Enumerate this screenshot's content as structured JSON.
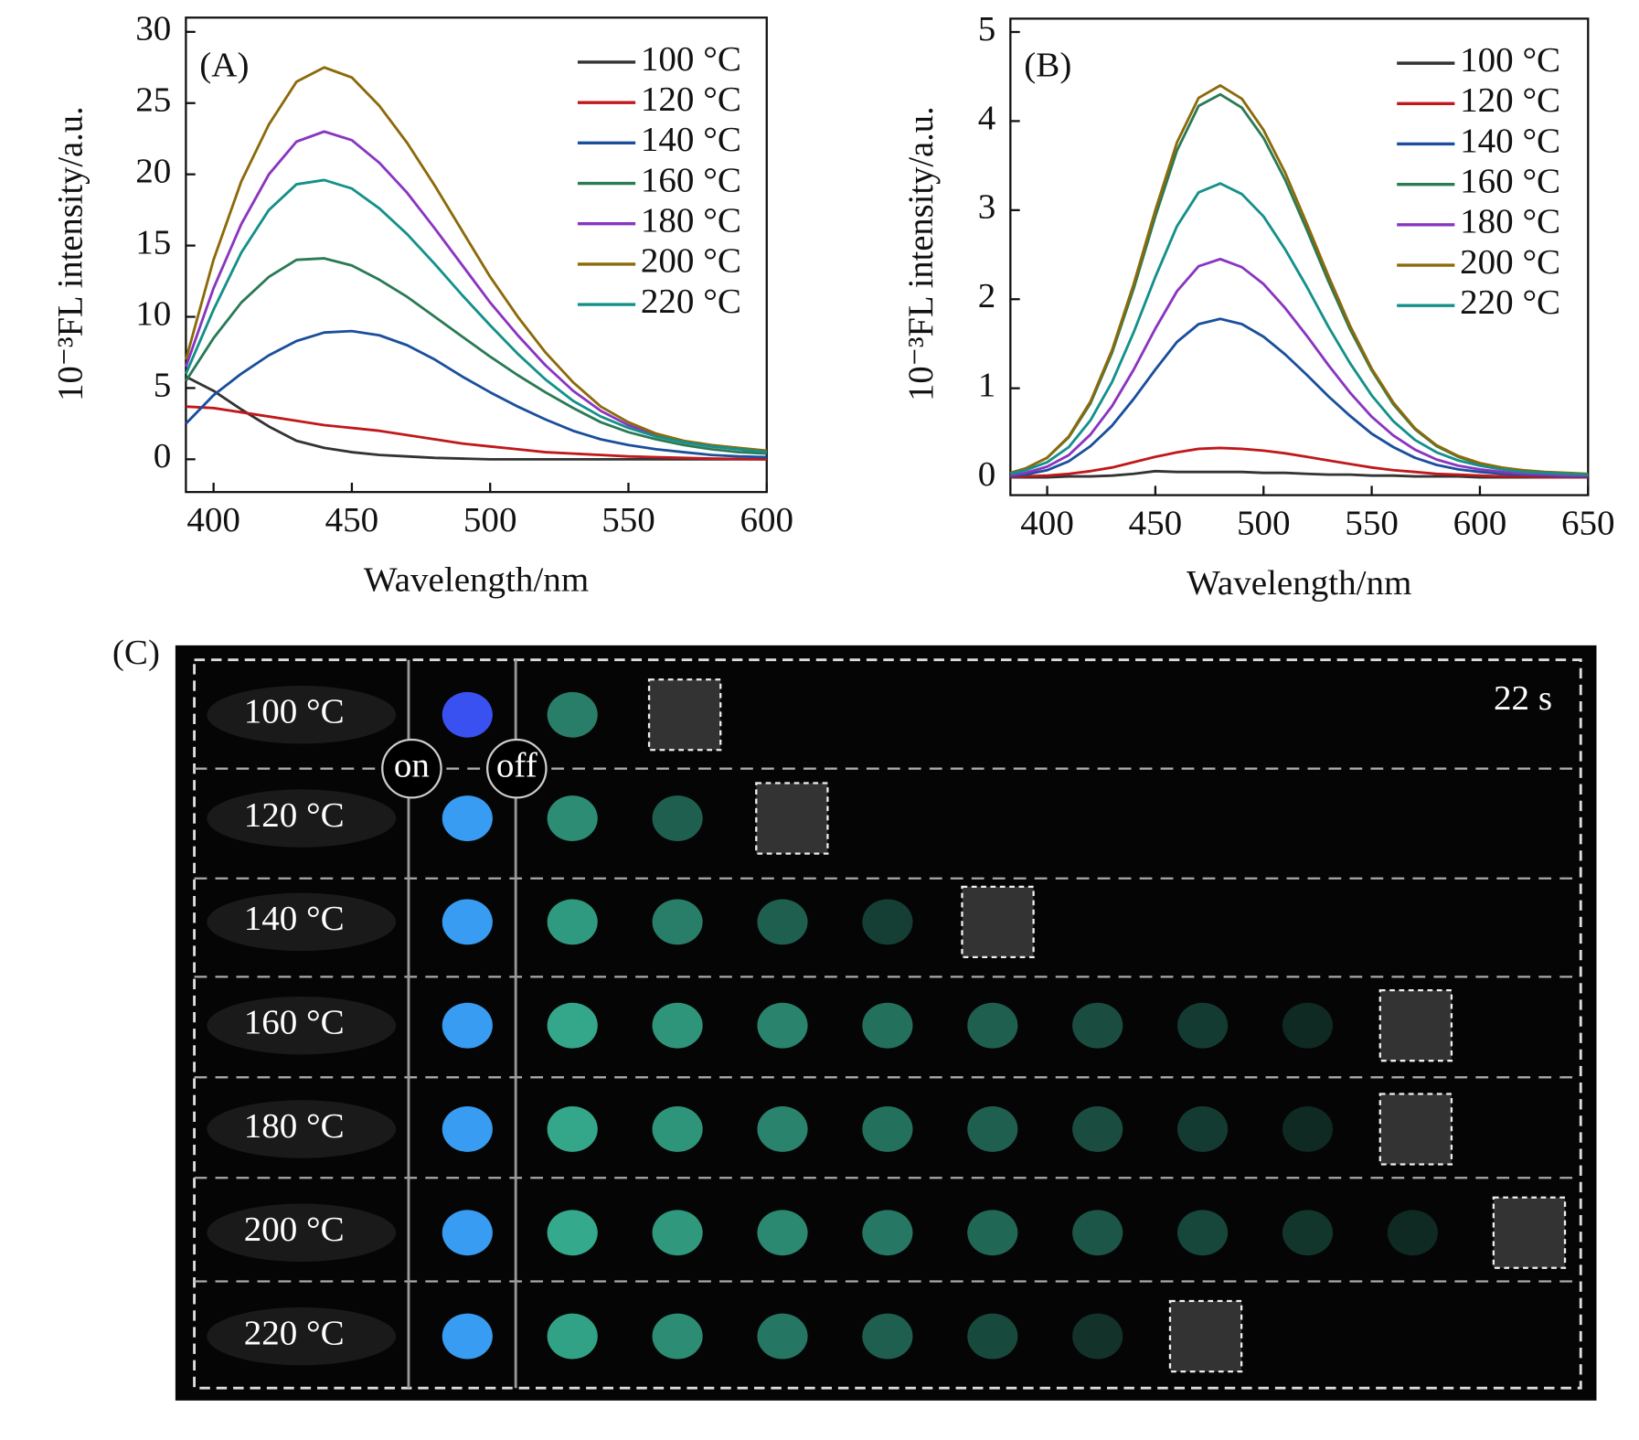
{
  "chart_data": [
    {
      "type": "line",
      "panel": "(A)",
      "x_label": "Wavelength/nm",
      "y_label": "10⁻³FL intensity/a.u.",
      "xlim": [
        390,
        600
      ],
      "ylim": [
        -2.3,
        31
      ],
      "xticks": [
        400,
        450,
        500,
        550,
        600
      ],
      "yticks": [
        0,
        5,
        10,
        15,
        20,
        25,
        30
      ],
      "legend": "upper right",
      "x": [
        390,
        400,
        410,
        420,
        430,
        440,
        450,
        460,
        470,
        480,
        490,
        500,
        510,
        520,
        530,
        540,
        550,
        560,
        570,
        580,
        590,
        600
      ],
      "series": [
        {
          "name": "100 °C",
          "color": "#333333",
          "values": [
            5.8,
            4.8,
            3.5,
            2.3,
            1.3,
            0.8,
            0.5,
            0.3,
            0.2,
            0.1,
            0.05,
            0,
            0,
            0,
            0,
            0,
            0,
            0,
            0,
            0,
            0,
            0
          ]
        },
        {
          "name": "120 °C",
          "color": "#c0181b",
          "values": [
            3.7,
            3.6,
            3.3,
            3.0,
            2.7,
            2.4,
            2.2,
            2.0,
            1.7,
            1.4,
            1.1,
            0.9,
            0.7,
            0.5,
            0.4,
            0.3,
            0.2,
            0.15,
            0.1,
            0.05,
            0.02,
            0
          ]
        },
        {
          "name": "140 °C",
          "color": "#1a4f9c",
          "values": [
            2.5,
            4.5,
            6.0,
            7.3,
            8.3,
            8.9,
            9.0,
            8.7,
            8.0,
            7.0,
            5.8,
            4.7,
            3.7,
            2.8,
            2.0,
            1.4,
            1.0,
            0.7,
            0.5,
            0.3,
            0.2,
            0.15
          ]
        },
        {
          "name": "160 °C",
          "color": "#2a7a55",
          "values": [
            5.5,
            8.5,
            11,
            12.8,
            14,
            14.1,
            13.6,
            12.6,
            11.4,
            10,
            8.6,
            7.2,
            5.9,
            4.7,
            3.6,
            2.6,
            1.9,
            1.4,
            1.0,
            0.7,
            0.5,
            0.4
          ]
        },
        {
          "name": "180 °C",
          "color": "#8a35c0",
          "values": [
            6.5,
            12,
            16.5,
            20,
            22.3,
            23.0,
            22.4,
            20.8,
            18.7,
            16.2,
            13.6,
            11,
            8.7,
            6.6,
            4.8,
            3.4,
            2.4,
            1.7,
            1.2,
            0.9,
            0.7,
            0.5
          ]
        },
        {
          "name": "200 °C",
          "color": "#8c6a0a",
          "values": [
            7,
            14,
            19.5,
            23.5,
            26.5,
            27.5,
            26.8,
            24.8,
            22.2,
            19.2,
            16,
            12.8,
            10,
            7.5,
            5.4,
            3.7,
            2.6,
            1.8,
            1.3,
            1.0,
            0.8,
            0.6
          ]
        },
        {
          "name": "220 °C",
          "color": "#14908a",
          "values": [
            6,
            10.5,
            14.5,
            17.5,
            19.3,
            19.6,
            19,
            17.6,
            15.8,
            13.7,
            11.5,
            9.4,
            7.4,
            5.6,
            4.1,
            3.0,
            2.2,
            1.6,
            1.2,
            0.9,
            0.7,
            0.5
          ]
        }
      ]
    },
    {
      "type": "line",
      "panel": "(B)",
      "x_label": "Wavelength/nm",
      "y_label": "10⁻³FL intensity/a.u.",
      "xlim": [
        383,
        650
      ],
      "ylim": [
        -0.2,
        5.15
      ],
      "xticks": [
        400,
        450,
        500,
        550,
        600,
        650
      ],
      "yticks": [
        0,
        1,
        2,
        3,
        4,
        5
      ],
      "legend": "upper right",
      "x": [
        383,
        390,
        400,
        410,
        420,
        430,
        440,
        450,
        460,
        470,
        480,
        490,
        500,
        510,
        520,
        530,
        540,
        550,
        560,
        570,
        580,
        590,
        600,
        610,
        620,
        630,
        640,
        650
      ],
      "series": [
        {
          "name": "100 °C",
          "color": "#333333",
          "values": [
            0,
            0,
            0,
            0.01,
            0.01,
            0.02,
            0.04,
            0.07,
            0.06,
            0.06,
            0.06,
            0.06,
            0.05,
            0.05,
            0.04,
            0.03,
            0.03,
            0.02,
            0.02,
            0.01,
            0.01,
            0.01,
            0,
            0,
            0,
            0,
            0,
            0
          ]
        },
        {
          "name": "120 °C",
          "color": "#c0181b",
          "values": [
            0,
            0.01,
            0.02,
            0.04,
            0.07,
            0.11,
            0.17,
            0.23,
            0.28,
            0.32,
            0.33,
            0.32,
            0.3,
            0.27,
            0.23,
            0.19,
            0.15,
            0.11,
            0.08,
            0.06,
            0.04,
            0.03,
            0.02,
            0.01,
            0.01,
            0,
            0,
            0
          ]
        },
        {
          "name": "140 °C",
          "color": "#1a4f9c",
          "values": [
            0.01,
            0.03,
            0.08,
            0.18,
            0.35,
            0.58,
            0.88,
            1.21,
            1.52,
            1.72,
            1.78,
            1.72,
            1.58,
            1.38,
            1.15,
            0.91,
            0.69,
            0.49,
            0.34,
            0.22,
            0.14,
            0.09,
            0.06,
            0.04,
            0.03,
            0.02,
            0.01,
            0.01
          ]
        },
        {
          "name": "160 °C",
          "color": "#2a7a55",
          "values": [
            0.05,
            0.1,
            0.22,
            0.45,
            0.83,
            1.4,
            2.12,
            2.93,
            3.67,
            4.17,
            4.3,
            4.15,
            3.81,
            3.34,
            2.78,
            2.2,
            1.66,
            1.2,
            0.82,
            0.54,
            0.35,
            0.23,
            0.15,
            0.1,
            0.07,
            0.05,
            0.04,
            0.03
          ]
        },
        {
          "name": "180 °C",
          "color": "#8a35c0",
          "values": [
            0.02,
            0.05,
            0.12,
            0.25,
            0.48,
            0.8,
            1.21,
            1.67,
            2.09,
            2.37,
            2.45,
            2.36,
            2.17,
            1.9,
            1.59,
            1.26,
            0.95,
            0.68,
            0.47,
            0.31,
            0.2,
            0.13,
            0.09,
            0.06,
            0.04,
            0.03,
            0.02,
            0.02
          ]
        },
        {
          "name": "200 °C",
          "color": "#8c6a0a",
          "values": [
            0.05,
            0.1,
            0.22,
            0.46,
            0.85,
            1.43,
            2.17,
            3.0,
            3.76,
            4.26,
            4.4,
            4.25,
            3.9,
            3.42,
            2.85,
            2.26,
            1.7,
            1.22,
            0.84,
            0.55,
            0.36,
            0.24,
            0.16,
            0.11,
            0.08,
            0.06,
            0.05,
            0.04
          ]
        },
        {
          "name": "220 °C",
          "color": "#14908a",
          "values": [
            0.04,
            0.08,
            0.17,
            0.34,
            0.64,
            1.07,
            1.63,
            2.25,
            2.82,
            3.2,
            3.3,
            3.18,
            2.93,
            2.56,
            2.14,
            1.69,
            1.28,
            0.92,
            0.63,
            0.42,
            0.28,
            0.19,
            0.13,
            0.09,
            0.06,
            0.05,
            0.04,
            0.03
          ]
        }
      ]
    }
  ],
  "panel_c": {
    "label": "(C)",
    "rows": [
      "100 °C",
      "120 °C",
      "140 °C",
      "160 °C",
      "180 °C",
      "200 °C",
      "220 °C"
    ],
    "on": "on",
    "off": "off",
    "time": "22 s"
  }
}
